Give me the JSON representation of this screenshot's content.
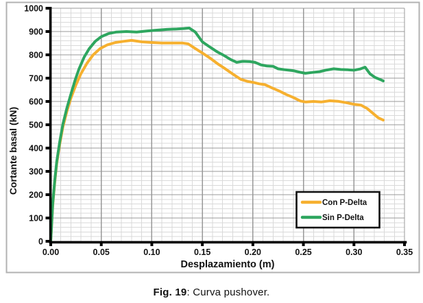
{
  "caption": {
    "label": "Fig. 19",
    "text": ": Curva pushover."
  },
  "chart_data": {
    "type": "line",
    "title": "",
    "xlabel": "Desplazamiento (m)",
    "ylabel": "Cortante basal (kN)",
    "xlim": [
      0,
      0.35
    ],
    "ylim": [
      0,
      1000
    ],
    "x_tick_labels": [
      "0.00",
      "0.05",
      "0.10",
      "0.15",
      "0.20",
      "0.25",
      "0.30",
      "0.35"
    ],
    "x_ticks": [
      0,
      0.05,
      0.1,
      0.15,
      0.2,
      0.25,
      0.3,
      0.35
    ],
    "y_ticks": [
      0,
      100,
      200,
      300,
      400,
      500,
      600,
      700,
      800,
      900,
      1000
    ],
    "grid": {
      "major": true,
      "minor": true,
      "x_minor_step": 0.01,
      "y_minor_step": 20
    },
    "style": {
      "grid_major_color": "#989898",
      "grid_minor_color": "#d9d9d9",
      "axis_color": "#000000",
      "figure_border_color": "#b2b2b2",
      "background": "#ffffff",
      "legend_border_color": "#111111"
    },
    "legend": {
      "position": "lower-right",
      "border": true,
      "entries": [
        "Con P-Delta",
        "Sin P-Delta"
      ]
    },
    "series": [
      {
        "name": "Con P-Delta",
        "color": "#F6B02F",
        "points": [
          [
            0,
            0
          ],
          [
            0.002,
            155
          ],
          [
            0.004,
            255
          ],
          [
            0.006,
            335
          ],
          [
            0.009,
            420
          ],
          [
            0.012,
            490
          ],
          [
            0.016,
            558
          ],
          [
            0.02,
            615
          ],
          [
            0.025,
            672
          ],
          [
            0.03,
            720
          ],
          [
            0.036,
            765
          ],
          [
            0.042,
            800
          ],
          [
            0.049,
            827
          ],
          [
            0.056,
            843
          ],
          [
            0.064,
            853
          ],
          [
            0.072,
            858
          ],
          [
            0.08,
            862
          ],
          [
            0.09,
            856
          ],
          [
            0.1,
            853
          ],
          [
            0.11,
            851
          ],
          [
            0.12,
            851
          ],
          [
            0.13,
            851
          ],
          [
            0.136,
            847
          ],
          [
            0.142,
            830
          ],
          [
            0.15,
            808
          ],
          [
            0.158,
            785
          ],
          [
            0.165,
            762
          ],
          [
            0.172,
            742
          ],
          [
            0.18,
            718
          ],
          [
            0.188,
            695
          ],
          [
            0.195,
            686
          ],
          [
            0.2,
            682
          ],
          [
            0.206,
            676
          ],
          [
            0.212,
            672
          ],
          [
            0.219,
            658
          ],
          [
            0.226,
            645
          ],
          [
            0.233,
            630
          ],
          [
            0.24,
            617
          ],
          [
            0.247,
            602
          ],
          [
            0.252,
            598
          ],
          [
            0.26,
            600
          ],
          [
            0.268,
            598
          ],
          [
            0.276,
            603
          ],
          [
            0.284,
            601
          ],
          [
            0.292,
            595
          ],
          [
            0.3,
            588
          ],
          [
            0.307,
            584
          ],
          [
            0.313,
            570
          ],
          [
            0.318,
            552
          ],
          [
            0.324,
            530
          ],
          [
            0.329,
            520
          ]
        ]
      },
      {
        "name": "Sin P-Delta",
        "color": "#2EA65F",
        "points": [
          [
            0,
            0
          ],
          [
            0.002,
            160
          ],
          [
            0.004,
            262
          ],
          [
            0.006,
            343
          ],
          [
            0.009,
            430
          ],
          [
            0.012,
            502
          ],
          [
            0.016,
            572
          ],
          [
            0.02,
            632
          ],
          [
            0.024,
            690
          ],
          [
            0.028,
            740
          ],
          [
            0.033,
            790
          ],
          [
            0.038,
            826
          ],
          [
            0.044,
            858
          ],
          [
            0.05,
            878
          ],
          [
            0.057,
            891
          ],
          [
            0.065,
            898
          ],
          [
            0.075,
            900
          ],
          [
            0.085,
            898
          ],
          [
            0.095,
            902
          ],
          [
            0.105,
            906
          ],
          [
            0.115,
            909
          ],
          [
            0.125,
            911
          ],
          [
            0.132,
            913
          ],
          [
            0.137,
            915
          ],
          [
            0.143,
            898
          ],
          [
            0.15,
            856
          ],
          [
            0.158,
            832
          ],
          [
            0.165,
            812
          ],
          [
            0.172,
            796
          ],
          [
            0.178,
            780
          ],
          [
            0.184,
            768
          ],
          [
            0.19,
            772
          ],
          [
            0.197,
            771
          ],
          [
            0.202,
            768
          ],
          [
            0.208,
            757
          ],
          [
            0.214,
            752
          ],
          [
            0.22,
            751
          ],
          [
            0.225,
            740
          ],
          [
            0.232,
            736
          ],
          [
            0.24,
            732
          ],
          [
            0.247,
            725
          ],
          [
            0.252,
            721
          ],
          [
            0.258,
            724
          ],
          [
            0.266,
            728
          ],
          [
            0.273,
            735
          ],
          [
            0.28,
            740
          ],
          [
            0.287,
            737
          ],
          [
            0.294,
            736
          ],
          [
            0.3,
            734
          ],
          [
            0.306,
            739
          ],
          [
            0.311,
            747
          ],
          [
            0.316,
            718
          ],
          [
            0.321,
            703
          ],
          [
            0.326,
            694
          ],
          [
            0.329,
            688
          ]
        ]
      }
    ]
  }
}
